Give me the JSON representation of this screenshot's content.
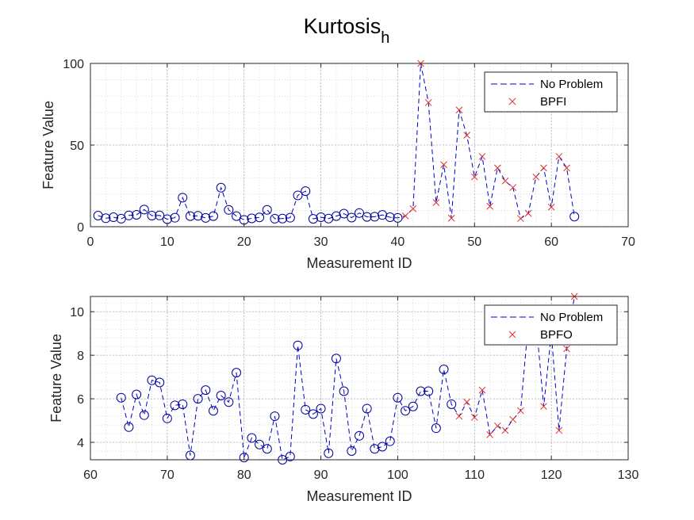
{
  "figure": {
    "title_main": "Kurtosis",
    "title_sub": "h"
  },
  "colors": {
    "line": "#0000c8",
    "marker_no_problem": "#000099",
    "marker_fault": "#e0302a",
    "axis": "#262626",
    "grid": "#b0b0b0"
  },
  "chart_data": [
    {
      "type": "line",
      "xlabel": "Measurement ID",
      "ylabel": "Feature Value",
      "xlim": [
        0,
        70
      ],
      "ylim": [
        0,
        100
      ],
      "xticks": [
        0,
        10,
        20,
        30,
        40,
        50,
        60,
        70
      ],
      "yticks": [
        0,
        50,
        100
      ],
      "grid": true,
      "minor_grid": true,
      "legend_position": "top-right",
      "legend": [
        "No Problem",
        "BPFI"
      ],
      "x": [
        1,
        2,
        3,
        4,
        5,
        6,
        7,
        8,
        9,
        10,
        11,
        12,
        13,
        14,
        15,
        16,
        17,
        18,
        19,
        20,
        21,
        22,
        23,
        24,
        25,
        26,
        27,
        28,
        29,
        30,
        31,
        32,
        33,
        34,
        35,
        36,
        37,
        38,
        39,
        40,
        41,
        42,
        43,
        44,
        45,
        46,
        47,
        48,
        49,
        50,
        51,
        52,
        53,
        54,
        55,
        56,
        57,
        58,
        59,
        60,
        61,
        62,
        63
      ],
      "y": [
        6.8,
        5.2,
        5.8,
        4.9,
        6.9,
        7.3,
        10.5,
        6.8,
        6.9,
        4.6,
        5.5,
        17.8,
        6.5,
        6.7,
        5.4,
        6.5,
        23.9,
        10.3,
        6.5,
        4.2,
        5.1,
        5.7,
        10.3,
        4.9,
        5.0,
        5.5,
        19.2,
        21.8,
        4.8,
        5.8,
        5.0,
        6.5,
        8.0,
        5.6,
        8.4,
        6.0,
        6.1,
        7.2,
        5.8,
        5.4,
        6.6,
        11.0,
        100.0,
        76.0,
        14.8,
        38.0,
        5.2,
        71.5,
        56.0,
        30.5,
        43.0,
        12.5,
        36.0,
        28.0,
        24.0,
        5.0,
        8.2,
        30.5,
        36.0,
        12.0,
        43.0,
        36.0,
        6.2
      ],
      "markers": [
        "o",
        "o",
        "o",
        "o",
        "o",
        "o",
        "o",
        "o",
        "o",
        "o",
        "o",
        "o",
        "o",
        "o",
        "o",
        "o",
        "o",
        "o",
        "o",
        "o",
        "o",
        "o",
        "o",
        "o",
        "o",
        "o",
        "o",
        "o",
        "o",
        "o",
        "o",
        "o",
        "o",
        "o",
        "o",
        "o",
        "o",
        "o",
        "o",
        "o",
        "x",
        "x",
        "x",
        "x",
        "x",
        "x",
        "x",
        "x",
        "x",
        "x",
        "x",
        "x",
        "x",
        "x",
        "x",
        "x",
        "x",
        "x",
        "x",
        "x",
        "x",
        "x",
        "o"
      ]
    },
    {
      "type": "line",
      "xlabel": "Measurement ID",
      "ylabel": "Feature Value",
      "xlim": [
        60,
        130
      ],
      "ylim": [
        3.2,
        10.7
      ],
      "xticks": [
        60,
        70,
        80,
        90,
        100,
        110,
        120,
        130
      ],
      "yticks": [
        4,
        6,
        8,
        10
      ],
      "grid": true,
      "minor_grid": true,
      "legend_position": "top-right",
      "legend": [
        "No Problem",
        "BPFO"
      ],
      "x": [
        64,
        65,
        66,
        67,
        68,
        69,
        70,
        71,
        72,
        73,
        74,
        75,
        76,
        77,
        78,
        79,
        80,
        81,
        82,
        83,
        84,
        85,
        86,
        87,
        88,
        89,
        90,
        91,
        92,
        93,
        94,
        95,
        96,
        97,
        98,
        99,
        100,
        101,
        102,
        103,
        104,
        105,
        106,
        107,
        108,
        109,
        110,
        111,
        112,
        113,
        114,
        115,
        116,
        117,
        118,
        119,
        120,
        121,
        122,
        123
      ],
      "y": [
        6.05,
        4.7,
        6.2,
        5.25,
        6.85,
        6.75,
        5.1,
        5.7,
        5.75,
        3.4,
        6.0,
        6.4,
        5.45,
        6.15,
        5.85,
        7.2,
        3.3,
        4.2,
        3.9,
        3.7,
        5.2,
        3.2,
        3.35,
        8.45,
        5.5,
        5.3,
        5.55,
        3.5,
        7.85,
        6.35,
        3.6,
        4.3,
        5.55,
        3.7,
        3.8,
        4.05,
        6.05,
        5.45,
        5.65,
        6.35,
        6.35,
        4.65,
        7.35,
        5.75,
        5.2,
        5.85,
        5.15,
        6.4,
        4.35,
        4.75,
        4.55,
        5.05,
        5.45,
        9.5,
        9.6,
        5.65,
        9.0,
        4.55,
        8.3,
        10.7
      ],
      "markers": [
        "o",
        "o",
        "o",
        "o",
        "o",
        "o",
        "o",
        "o",
        "o",
        "o",
        "o",
        "o",
        "o",
        "o",
        "o",
        "o",
        "o",
        "o",
        "o",
        "o",
        "o",
        "o",
        "o",
        "o",
        "o",
        "o",
        "o",
        "o",
        "o",
        "o",
        "o",
        "o",
        "o",
        "o",
        "o",
        "o",
        "o",
        "o",
        "o",
        "o",
        "o",
        "o",
        "o",
        "o",
        "x",
        "x",
        "x",
        "x",
        "x",
        "x",
        "x",
        "x",
        "x",
        "x",
        "x",
        "x",
        "x",
        "x",
        "x",
        "x"
      ]
    }
  ]
}
